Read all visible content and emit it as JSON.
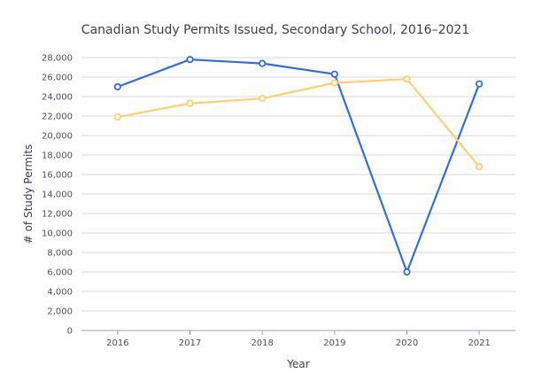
{
  "chart_data": {
    "type": "line",
    "title": "Canadian Study Permits Issued, Secondary School, 2016–2021",
    "xlabel": "Year",
    "ylabel": "# of Study Permits",
    "categories": [
      "2016",
      "2017",
      "2018",
      "2019",
      "2020",
      "2021"
    ],
    "ylim": [
      0,
      28000
    ],
    "yticks": [
      0,
      2000,
      4000,
      6000,
      8000,
      10000,
      12000,
      14000,
      16000,
      18000,
      20000,
      22000,
      24000,
      26000,
      28000
    ],
    "ytick_labels": [
      "0",
      "2,000",
      "4,000",
      "6,000",
      "8,000",
      "10,000",
      "12,000",
      "14,000",
      "16,000",
      "18,000",
      "20,000",
      "22,000",
      "24,000",
      "26,000",
      "28,000"
    ],
    "grid": true,
    "legend": "none",
    "series": [
      {
        "color": "#2f6fdc",
        "values": [
          25000,
          27800,
          27400,
          26300,
          6000,
          25300
        ]
      },
      {
        "color": "#ffcf6b",
        "values": [
          21900,
          23300,
          23800,
          25400,
          25800,
          16800
        ]
      }
    ]
  }
}
